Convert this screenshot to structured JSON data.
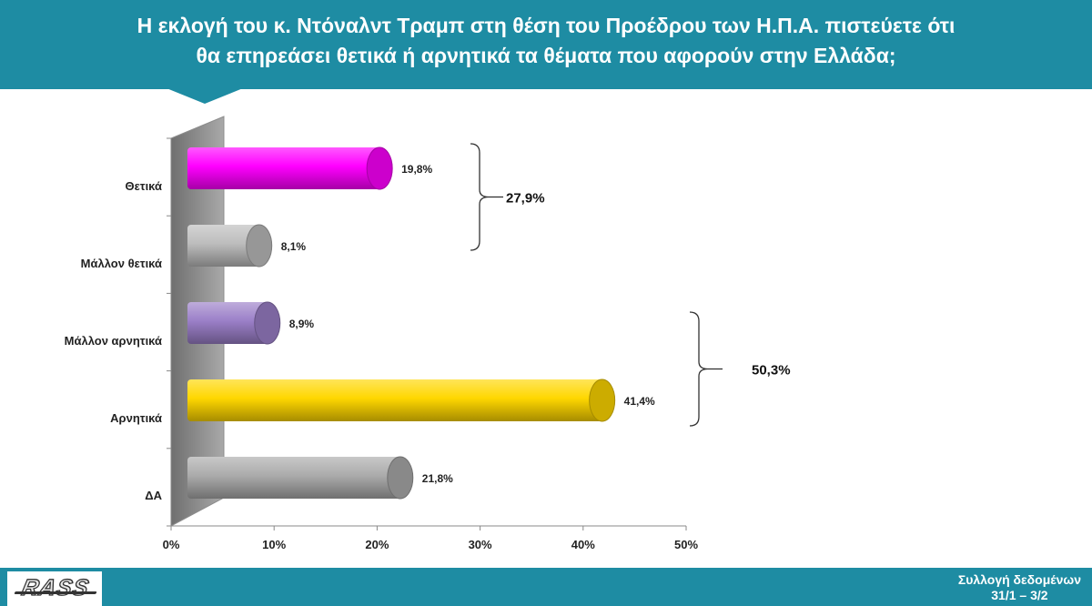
{
  "header": {
    "title_line1": "Η εκλογή του κ. Ντόναλντ Τραμπ στη θέση του Προέδρου των Η.Π.Α. πιστεύετε ότι",
    "title_line2": "θα επηρεάσει θετικά ή αρνητικά τα θέματα που αφορούν στην Ελλάδα;"
  },
  "footer": {
    "logo_text": "RASS",
    "note_line1": "Συλλογή δεδομένων",
    "note_line2": "31/1 – 3/2"
  },
  "chart_data": {
    "type": "bar",
    "orientation": "horizontal",
    "categories": [
      "Θετικά",
      "Μάλλον θετικά",
      "Μάλλον αρνητικά",
      "Αρνητικά",
      "ΔΑ"
    ],
    "values": [
      19.8,
      8.1,
      8.9,
      41.4,
      21.8
    ],
    "data_labels": [
      "19,8%",
      "8,1%",
      "8,9%",
      "41,4%",
      "21,8%"
    ],
    "colors": [
      "#ff00ff",
      "#bdbdbd",
      "#9b7fc8",
      "#ffd700",
      "#ababab"
    ],
    "xlim": [
      0,
      50
    ],
    "x_ticks": [
      0,
      10,
      20,
      30,
      40,
      50
    ],
    "x_tick_labels": [
      "0%",
      "10%",
      "20%",
      "30%",
      "40%",
      "50%"
    ],
    "groups": [
      {
        "label": "27,9%",
        "categories": [
          "Θετικά",
          "Μάλλον θετικά"
        ]
      },
      {
        "label": "50,3%",
        "categories": [
          "Μάλλον αρνητικά",
          "Αρνητικά"
        ]
      }
    ],
    "grid": false,
    "legend": "none",
    "style": "3d-cylinder"
  }
}
